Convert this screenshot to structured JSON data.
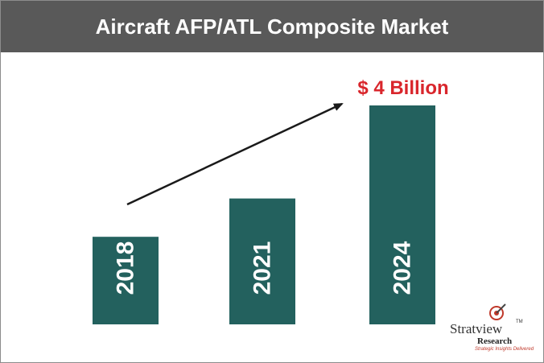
{
  "chart_data": {
    "type": "bar",
    "title": "Aircraft AFP/ATL Composite Market",
    "categories": [
      "2018",
      "2021",
      "2024"
    ],
    "values": [
      1.6,
      2.3,
      4.0
    ],
    "value_unit": "$ Billion",
    "annotation": "$ 4 Billion",
    "bar_color": "#23615e",
    "annotation_color": "#d9262c",
    "title_bar_color": "#595959"
  },
  "logo": {
    "name": "Stratview",
    "tm": "TM",
    "sub": "Research",
    "tagline": "Strategic Insights Delivered"
  }
}
